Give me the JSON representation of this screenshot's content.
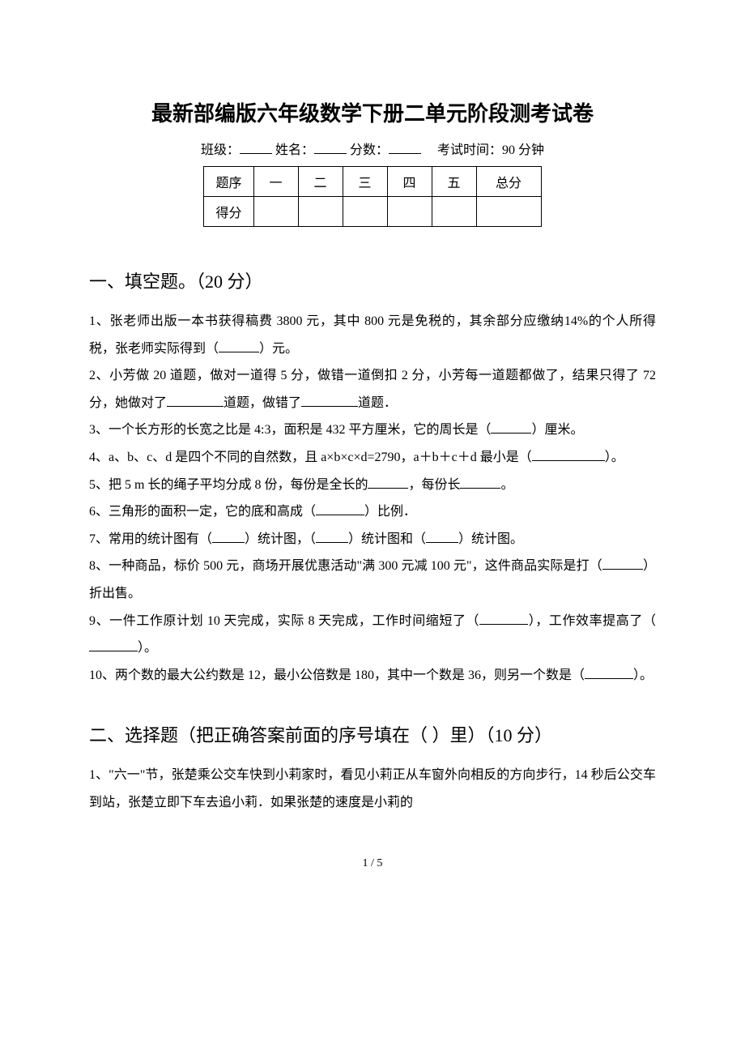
{
  "title": "最新部编版六年级数学下册二单元阶段测考试卷",
  "meta": {
    "class_label": "班级：",
    "name_label": "姓名：",
    "score_label": "分数：",
    "time_label": "考试时间：90 分钟"
  },
  "score_table": {
    "row_label_1": "题序",
    "row_label_2": "得分",
    "cols": [
      "一",
      "二",
      "三",
      "四",
      "五",
      "总分"
    ]
  },
  "section1": {
    "heading": "一、填空题。（20 分）",
    "q1_a": "1、张老师出版一本书获得稿费 3800 元，其中 800 元是免税的，其余部分应缴纳14%的个人所得税，张老师实际得到（",
    "q1_b": "）元。",
    "q2_a": "2、小芳做 20 道题，做对一道得 5 分，做错一道倒扣 2 分，小芳每一道题都做了，结果只得了 72 分，她做对了",
    "q2_b": "道题，做错了",
    "q2_c": "道题．",
    "q3_a": "3、一个长方形的长宽之比是 4:3，面积是 432 平方厘米，它的周长是（",
    "q3_b": "）厘米。",
    "q4_a": "4、a、b、c、d 是四个不同的自然数，且 a×b×c×d=2790，a＋b＋c＋d 最小是（",
    "q4_b": "）。",
    "q5_a": "5、把 5 m 长的绳子平均分成 8 份，每份是全长的",
    "q5_b": "，每份长",
    "q5_c": "。",
    "q6_a": "6、三角形的面积一定，它的底和高成（",
    "q6_b": "）比例．",
    "q7_a": "7、常用的统计图有（",
    "q7_b": "）统计图，（",
    "q7_c": "）统计图和（",
    "q7_d": "）统计图。",
    "q8_a": "8、一种商品，标价 500 元，商场开展优惠活动\"满 300 元减 100 元\"，这件商品实际是打（",
    "q8_b": "）折出售。",
    "q9_a": "9、一件工作原计划 10 天完成，实际 8 天完成，工作时间缩短了（",
    "q9_b": "），工作效率提高了（",
    "q9_c": "）。",
    "q10_a": "10、两个数的最大公约数是 12，最小公倍数是 180，其中一个数是 36，则另一个数是（",
    "q10_b": "）。"
  },
  "section2": {
    "heading": "二、选择题（把正确答案前面的序号填在（ ）里）（10 分）",
    "q1": "1、\"六一\"节，张楚乘公交车快到小莉家时，看见小莉正从车窗外向相反的方向步行，14 秒后公交车到站，张楚立即下车去追小莉．如果张楚的速度是小莉的"
  },
  "footer": "1 / 5"
}
